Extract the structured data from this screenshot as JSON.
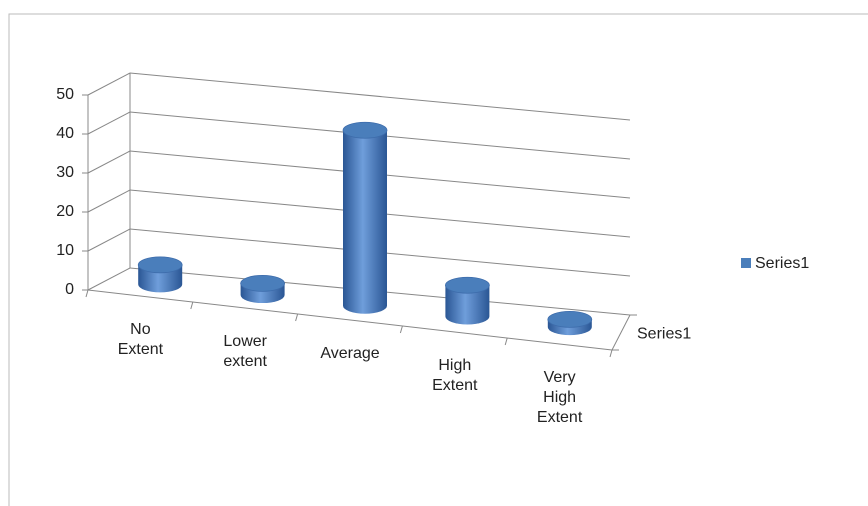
{
  "chart_data": {
    "type": "bar",
    "categories": [
      "No Extent",
      "Lower extent",
      "Average",
      "High Extent",
      "Very High Extent"
    ],
    "series": [
      {
        "name": "Series1",
        "color": "#4a7ebb",
        "values": [
          5,
          3,
          45,
          8,
          2
        ]
      }
    ],
    "ylim": [
      0,
      50
    ],
    "yticks": [
      0,
      10,
      20,
      30,
      40,
      50
    ],
    "grid": true,
    "legend": "right"
  }
}
